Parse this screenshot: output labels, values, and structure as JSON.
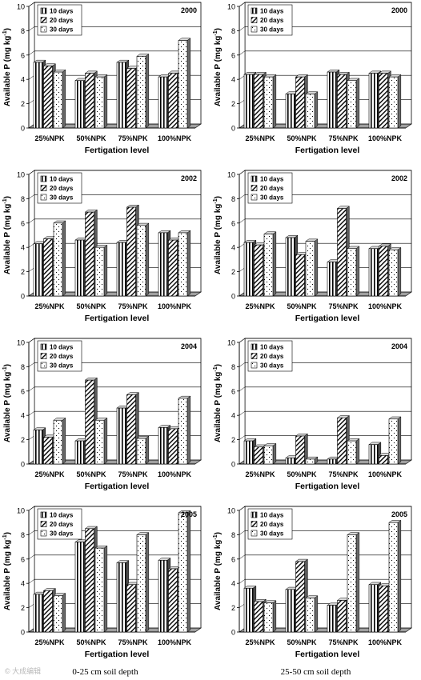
{
  "labels": {
    "ylabel": "Available P (mg kg",
    "ylabel_sup": "-1",
    "ylabel_end": ")",
    "xlabel": "Fertigation level",
    "categories": [
      "25%NPK",
      "50%NPK",
      "75%NPK",
      "100%NPK"
    ],
    "series": [
      "10 days",
      "20 days",
      "30 days"
    ]
  },
  "captions": {
    "left": "0-25 cm soil depth",
    "right": "25-50 cm soil depth"
  },
  "watermark": "© 大成编辑",
  "chart_data": [
    {
      "type": "bar",
      "year": "2000",
      "depth": "0-25 cm soil depth",
      "ylim": [
        0,
        10
      ],
      "yticks": [
        0,
        2,
        4,
        6,
        8,
        10
      ],
      "series": [
        {
          "name": "10 days",
          "values": [
            5.4,
            3.9,
            5.4,
            4.2
          ]
        },
        {
          "name": "20 days",
          "values": [
            5.1,
            4.5,
            4.9,
            4.5
          ]
        },
        {
          "name": "30 days",
          "values": [
            4.6,
            4.2,
            5.9,
            7.2
          ]
        }
      ]
    },
    {
      "type": "bar",
      "year": "2000",
      "depth": "25-50 cm soil depth",
      "ylim": [
        0,
        10
      ],
      "yticks": [
        0,
        2,
        4,
        6,
        8,
        10
      ],
      "series": [
        {
          "name": "10 days",
          "values": [
            4.4,
            2.8,
            4.6,
            4.5
          ]
        },
        {
          "name": "20 days",
          "values": [
            4.4,
            4.2,
            4.4,
            4.5
          ]
        },
        {
          "name": "30 days",
          "values": [
            4.2,
            2.8,
            3.9,
            4.2
          ]
        }
      ]
    },
    {
      "type": "bar",
      "year": "2002",
      "depth": "0-25 cm soil depth",
      "ylim": [
        0,
        10
      ],
      "yticks": [
        0,
        2,
        4,
        6,
        8,
        10
      ],
      "series": [
        {
          "name": "10 days",
          "values": [
            4.3,
            4.6,
            4.4,
            5.2
          ]
        },
        {
          "name": "20 days",
          "values": [
            4.7,
            6.9,
            7.3,
            4.6
          ]
        },
        {
          "name": "30 days",
          "values": [
            6.0,
            4.0,
            5.8,
            5.2
          ]
        }
      ]
    },
    {
      "type": "bar",
      "year": "2002",
      "depth": "25-50 cm soil depth",
      "ylim": [
        0,
        10
      ],
      "yticks": [
        0,
        2,
        4,
        6,
        8,
        10
      ],
      "series": [
        {
          "name": "10 days",
          "values": [
            4.4,
            4.8,
            2.8,
            3.9
          ]
        },
        {
          "name": "20 days",
          "values": [
            4.2,
            3.4,
            7.2,
            4.1
          ]
        },
        {
          "name": "30 days",
          "values": [
            5.1,
            4.5,
            3.9,
            3.8
          ]
        }
      ]
    },
    {
      "type": "bar",
      "year": "2004",
      "depth": "0-25 cm soil depth",
      "ylim": [
        0,
        10
      ],
      "yticks": [
        0,
        2,
        4,
        6,
        8,
        10
      ],
      "series": [
        {
          "name": "10 days",
          "values": [
            2.8,
            1.9,
            4.6,
            3.0
          ]
        },
        {
          "name": "20 days",
          "values": [
            2.2,
            6.9,
            5.7,
            2.9
          ]
        },
        {
          "name": "30 days",
          "values": [
            3.6,
            3.6,
            2.1,
            5.4
          ]
        }
      ]
    },
    {
      "type": "bar",
      "year": "2004",
      "depth": "25-50 cm soil depth",
      "ylim": [
        0,
        10
      ],
      "yticks": [
        0,
        2,
        4,
        6,
        8,
        10
      ],
      "series": [
        {
          "name": "10 days",
          "values": [
            1.9,
            0.5,
            0.4,
            1.6
          ]
        },
        {
          "name": "20 days",
          "values": [
            1.4,
            2.3,
            3.8,
            0.7
          ]
        },
        {
          "name": "30 days",
          "values": [
            1.5,
            0.4,
            1.9,
            3.7
          ]
        }
      ]
    },
    {
      "type": "bar",
      "year": "2005",
      "depth": "0-25 cm soil depth",
      "ylim": [
        0,
        10
      ],
      "yticks": [
        0,
        2,
        4,
        6,
        8,
        10
      ],
      "series": [
        {
          "name": "10 days",
          "values": [
            3.1,
            7.4,
            5.7,
            5.9
          ]
        },
        {
          "name": "20 days",
          "values": [
            3.4,
            8.5,
            3.9,
            5.2
          ]
        },
        {
          "name": "30 days",
          "values": [
            3.0,
            6.9,
            8.0,
            9.8
          ]
        }
      ]
    },
    {
      "type": "bar",
      "year": "2005",
      "depth": "25-50 cm soil depth",
      "ylim": [
        0,
        10
      ],
      "yticks": [
        0,
        2,
        4,
        6,
        8,
        10
      ],
      "series": [
        {
          "name": "10 days",
          "values": [
            3.6,
            3.5,
            2.2,
            3.9
          ]
        },
        {
          "name": "20 days",
          "values": [
            2.5,
            5.8,
            2.6,
            3.8
          ]
        },
        {
          "name": "30 days",
          "values": [
            2.4,
            2.8,
            8.0,
            9.0
          ]
        }
      ]
    }
  ]
}
